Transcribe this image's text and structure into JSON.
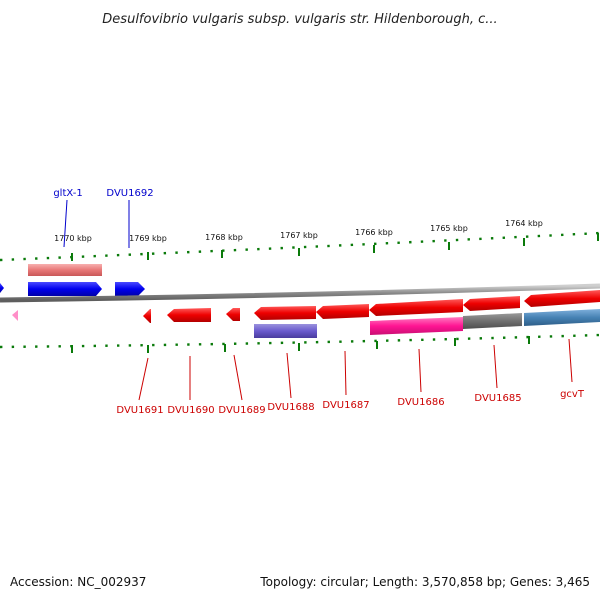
{
  "title": "Desulfovibrio vulgaris subsp. vulgaris str. Hildenborough, c...",
  "footer": {
    "accession": "Accession: NC_002937",
    "summary": "Topology: circular; Length: 3,570,858 bp; Genes: 3,465"
  },
  "kbp_ticks": [
    "1770 kbp",
    "1769 kbp",
    "1768 kbp",
    "1767 kbp",
    "1766 kbp",
    "1765 kbp",
    "1764 kbp"
  ],
  "top_gene_labels": [
    "gltX-1",
    "DVU1692"
  ],
  "bottom_gene_labels": [
    "DVU1691",
    "DVU1690",
    "DVU1689",
    "DVU1688",
    "DVU1687",
    "DVU1686",
    "DVU1685",
    "gcvT"
  ],
  "colors": {
    "backbone": "#8a8a8a",
    "forward_gene": "#0000ee",
    "reverse_gene": "#ee0000",
    "tick": "#0a7a0a",
    "label_forward": "#0000cc",
    "label_reverse": "#cc0000"
  }
}
